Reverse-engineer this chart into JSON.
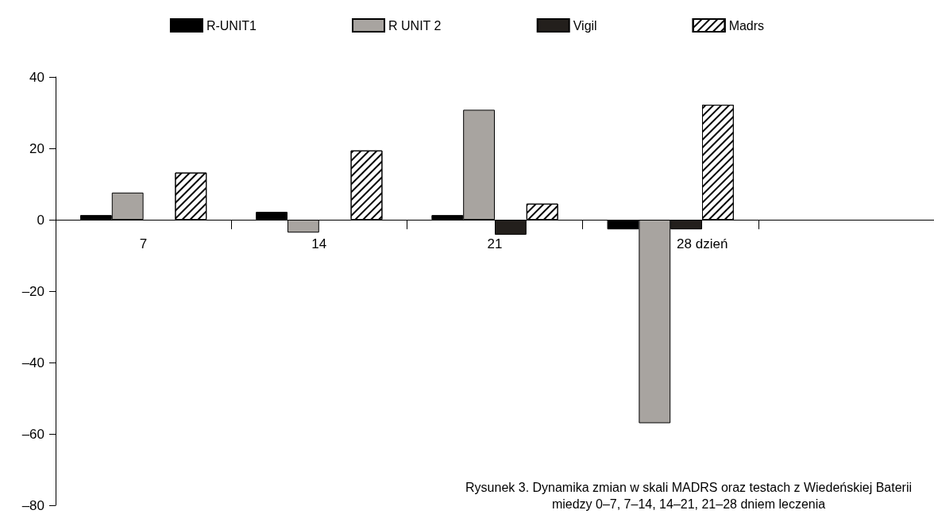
{
  "chart_data": {
    "type": "bar",
    "categories": [
      "7",
      "14",
      "21",
      "28 dzień",
      null
    ],
    "series": [
      {
        "name": "R-UNIT1",
        "color": "#000000",
        "values": [
          1.3,
          2.2,
          1.3,
          -2.7,
          null
        ]
      },
      {
        "name": "R UNIT 2",
        "color": "#a8a4a0",
        "values": [
          7.6,
          -3.6,
          30.8,
          -57,
          null
        ]
      },
      {
        "name": "Vigil",
        "color": "#231f1c",
        "values": [
          0,
          0,
          -4.2,
          -2.7,
          null
        ]
      },
      {
        "name": "Madrs",
        "color": "#ffffff",
        "values": [
          13.2,
          19.4,
          4.5,
          32.2,
          null
        ]
      }
    ],
    "ylim": [
      -80,
      40
    ],
    "yticks": [
      {
        "value": -80,
        "label": "–80"
      },
      {
        "value": -60,
        "label": "–60"
      },
      {
        "value": -40,
        "label": "–40"
      },
      {
        "value": -20,
        "label": "–20"
      },
      0,
      20,
      40
    ],
    "grid": false,
    "legend": "top",
    "annotations": [
      "Rysunek 3. Dynamika zmian w skali MADRS oraz testach z Wiedeńskiej Baterii\nmiedzy 0–7, 7–14, 14–21, 21–28 dniem leczenia"
    ]
  }
}
